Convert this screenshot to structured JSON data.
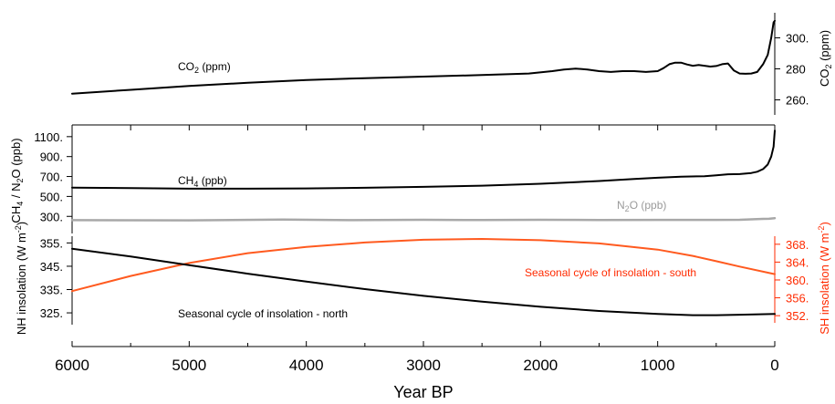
{
  "colors": {
    "black": "#000000",
    "grey": "#a8a8a8",
    "red": "#ff5a1f",
    "red_axis": "#ff2a00"
  },
  "chart_data": [
    {
      "type": "line",
      "panel": "co2",
      "ylabel": "CO2 (ppm)",
      "ylim": [
        255,
        315
      ],
      "yticks": [
        260,
        280,
        300
      ],
      "ytick_labels": [
        "260.",
        "280",
        "300."
      ],
      "yaxis_side": "right",
      "series": [
        {
          "name": "CO2 (ppm)",
          "x": [
            6000,
            5500,
            5000,
            4500,
            4000,
            3500,
            3000,
            2500,
            2100,
            1900,
            1800,
            1700,
            1600,
            1500,
            1400,
            1300,
            1200,
            1100,
            1000,
            950,
            900,
            850,
            800,
            750,
            700,
            650,
            600,
            550,
            500,
            450,
            400,
            350,
            300,
            250,
            200,
            150,
            100,
            60,
            30,
            10,
            0
          ],
          "y": [
            264,
            266.5,
            269,
            271,
            272.8,
            274,
            275,
            276,
            277,
            278.5,
            279.5,
            280.2,
            279.5,
            278.5,
            278,
            278.5,
            278.5,
            278,
            278.5,
            280.5,
            283,
            284,
            284,
            282.8,
            282,
            282.5,
            282,
            281.5,
            281.8,
            283,
            283.5,
            279,
            277,
            276.8,
            277,
            278,
            283,
            289,
            300,
            310,
            311
          ]
        }
      ]
    },
    {
      "type": "line",
      "panel": "ch4_n2o",
      "ylabel": "CH4 / N2O (ppb)",
      "ylim": [
        220,
        1190
      ],
      "yticks": [
        300,
        500,
        700,
        900,
        1100
      ],
      "ytick_labels": [
        "300.",
        "500.",
        "700.",
        "900.",
        "1100."
      ],
      "yaxis_side": "left",
      "series": [
        {
          "name": "CH4 (ppb)",
          "x": [
            6000,
            5500,
            5000,
            4500,
            4000,
            3500,
            3000,
            2500,
            2000,
            1500,
            1200,
            1000,
            800,
            600,
            500,
            400,
            300,
            200,
            150,
            100,
            60,
            30,
            10,
            0
          ],
          "y": [
            589,
            583,
            578,
            578,
            581,
            587,
            596,
            608,
            627,
            655,
            676,
            688,
            699,
            703,
            712,
            722,
            724,
            735,
            748,
            775,
            820,
            900,
            1000,
            1160
          ]
        },
        {
          "name": "N2O (ppb)",
          "x": [
            6000,
            5000,
            4200,
            3600,
            3000,
            2500,
            2000,
            1500,
            1000,
            500,
            300,
            200,
            100,
            50,
            0
          ],
          "y": [
            262,
            260,
            268,
            262,
            266,
            263,
            266,
            264,
            265,
            265,
            266,
            270,
            275,
            276,
            282
          ]
        }
      ]
    },
    {
      "type": "line",
      "panel": "insolation",
      "ylabel": "NH insolation (W m-2)",
      "ylim": [
        321.5,
        357.5
      ],
      "yticks": [
        325,
        335,
        345,
        355
      ],
      "ytick_labels": [
        "325.",
        "335.",
        "345.",
        "355."
      ],
      "yaxis_side": "left",
      "y2label": "SH insolation (W m-2)",
      "y2lim": [
        350.8,
        369.6
      ],
      "y2ticks": [
        352,
        356,
        360,
        364,
        368
      ],
      "y2tick_labels": [
        "352.",
        "356.",
        "360.",
        "364.",
        "368."
      ],
      "series": [
        {
          "name": "Seasonal cycle of insolation - north",
          "axis": "left",
          "x": [
            6000,
            5500,
            5000,
            4500,
            4000,
            3500,
            3000,
            2500,
            2000,
            1500,
            1000,
            700,
            500,
            300,
            0
          ],
          "y": [
            352.5,
            349.2,
            345.5,
            341.8,
            338.4,
            335.2,
            332.3,
            329.8,
            327.6,
            325.8,
            324.5,
            324.0,
            324.0,
            324.2,
            324.5
          ]
        },
        {
          "name": "Seasonal cycle of insolation - south",
          "axis": "right",
          "x": [
            6000,
            5500,
            5000,
            4500,
            4000,
            3500,
            3000,
            2500,
            2000,
            1500,
            1000,
            700,
            500,
            300,
            0
          ],
          "y": [
            357.5,
            360.9,
            363.8,
            366.0,
            367.4,
            368.4,
            369.0,
            369.2,
            368.9,
            368.2,
            366.8,
            365.4,
            364.2,
            363.0,
            361.3
          ]
        }
      ]
    }
  ],
  "x_axis": {
    "label": "Year BP",
    "reversed": true,
    "xlim": [
      6000,
      0
    ],
    "ticks": [
      6000,
      5000,
      4000,
      3000,
      2000,
      1000,
      0
    ],
    "tick_labels": [
      "6000",
      "5000",
      "4000",
      "3000",
      "2000",
      "1000",
      "0"
    ],
    "minor_ticks": [
      5500,
      4500,
      3500,
      2500,
      1500,
      500
    ]
  },
  "labels": {
    "co2_series": "CO2 (ppm)",
    "ch4_series": "CH4 (ppb)",
    "n2o_series": "N2O (ppb)",
    "north_series": "Seasonal cycle of insolation - north",
    "south_series": "Seasonal cycle of insolation - south",
    "co2_axis": "CO2 (ppm)",
    "ch4_n2o_axis": "CH4 / N2O (ppb)",
    "nh_axis": "NH insolation (W m-2)",
    "sh_axis": "SH insolation (W m-2)"
  }
}
